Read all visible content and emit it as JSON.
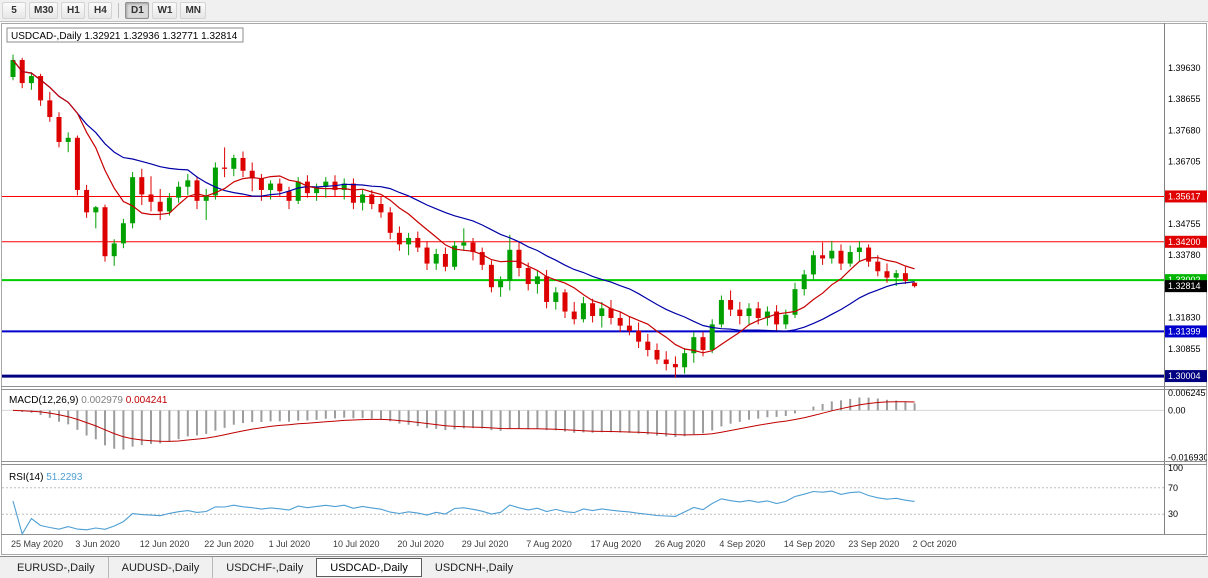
{
  "toolbar": {
    "buttons": [
      "5",
      "M30",
      "H1",
      "H4",
      "|",
      "D1",
      "W1",
      "MN"
    ],
    "active": "D1"
  },
  "chart": {
    "symbol_period": "USDCAD-,Daily",
    "open": "1.32921",
    "high": "1.32936",
    "low": "1.32771",
    "close": "1.32814"
  },
  "price_axis": {
    "grid_labels": [
      {
        "text": "1.39630",
        "value": 1.3963
      },
      {
        "text": "1.38655",
        "value": 1.38655
      },
      {
        "text": "1.37680",
        "value": 1.3768
      },
      {
        "text": "1.36705",
        "value": 1.36705
      },
      {
        "text": "1.35730",
        "value": 1.3573
      },
      {
        "text": "1.34755",
        "value": 1.34755
      },
      {
        "text": "1.33780",
        "value": 1.3378
      },
      {
        "text": "1.32805",
        "value": 1.32805
      },
      {
        "text": "1.31830",
        "value": 1.3183
      },
      {
        "text": "1.30855",
        "value": 1.30855
      },
      {
        "text": "1.29880",
        "value": 1.2988
      }
    ],
    "badges": [
      {
        "text": "1.35617",
        "value": 1.35617,
        "color": "#E00000"
      },
      {
        "text": "1.34200",
        "value": 1.342,
        "color": "#E00000"
      },
      {
        "text": "1.33002",
        "value": 1.33002,
        "color": "#00B400"
      },
      {
        "text": "1.31399",
        "value": 1.31399,
        "color": "#0000CC"
      },
      {
        "text": "1.30004",
        "value": 1.30004,
        "color": "#000080"
      },
      {
        "text": "1.32814",
        "value": 1.32814,
        "color": "#000000"
      }
    ]
  },
  "hlines": [
    {
      "value": 1.35617,
      "color": "#FF0000",
      "width": 1
    },
    {
      "value": 1.342,
      "color": "#FF0000",
      "width": 1
    },
    {
      "value": 1.33002,
      "color": "#00CC00",
      "width": 2
    },
    {
      "value": 1.31399,
      "color": "#0000CC",
      "width": 2
    },
    {
      "value": 1.30004,
      "color": "#000080",
      "width": 3
    }
  ],
  "macd": {
    "label": "MACD(12,26,9)",
    "value_main": "0.002979",
    "value_signal": "0.004241",
    "range": [
      -0.0175,
      0.007
    ],
    "axis": [
      {
        "text": "0.006245",
        "value": 0.006245
      },
      {
        "text": "0.00",
        "value": 0
      },
      {
        "text": "-0.016930",
        "value": -0.01693
      }
    ]
  },
  "rsi": {
    "label": "RSI(14)",
    "value": "51.2293",
    "period": 14,
    "levels": [
      70,
      30
    ],
    "axis": [
      {
        "text": "100",
        "value": 100
      },
      {
        "text": "70",
        "value": 70
      },
      {
        "text": "30",
        "value": 30
      }
    ]
  },
  "date_axis": {
    "step": 7,
    "labels": [
      "25 May 2020",
      "3 Jun 2020",
      "12 Jun 2020",
      "22 Jun 2020",
      "1 Jul 2020",
      "10 Jul 2020",
      "20 Jul 2020",
      "29 Jul 2020",
      "7 Aug 2020",
      "17 Aug 2020",
      "26 Aug 2020",
      "4 Sep 2020",
      "14 Sep 2020",
      "23 Sep 2020",
      "2 Oct 2020"
    ]
  },
  "tabs": [
    {
      "label": "EURUSD-,Daily",
      "active": false
    },
    {
      "label": "AUDUSD-,Daily",
      "active": false
    },
    {
      "label": "USDCHF-,Daily",
      "active": false
    },
    {
      "label": "USDCAD-,Daily",
      "active": true
    },
    {
      "label": "USDCNH-,Daily",
      "active": false
    }
  ],
  "chart_data": {
    "type": "candlestick",
    "symbol": "USDCAD",
    "timeframe": "Daily",
    "price_range": [
      1.2985,
      1.4085
    ],
    "colors": {
      "up": "#00A000",
      "down": "#DD0000",
      "ma_fast": "#C80000",
      "ma_slow": "#0000A8",
      "macd_hist": "#9C9C9C",
      "macd_signal": "#C00000",
      "rsi": "#4E9FD4"
    },
    "ma_fast": {
      "period": 8
    },
    "ma_slow": {
      "period": 20
    },
    "macd_params": {
      "fast": 12,
      "slow": 26,
      "signal": 9
    },
    "candles": [
      [
        1.3935,
        1.4005,
        1.3925,
        1.3988
      ],
      [
        1.3988,
        1.3995,
        1.39,
        1.3916
      ],
      [
        1.3916,
        1.395,
        1.3895,
        1.3938
      ],
      [
        1.3938,
        1.3945,
        1.3845,
        1.3862
      ],
      [
        1.3862,
        1.3888,
        1.3795,
        1.381
      ],
      [
        1.381,
        1.3825,
        1.3715,
        1.3732
      ],
      [
        1.3732,
        1.3762,
        1.37,
        1.3745
      ],
      [
        1.3745,
        1.3752,
        1.3565,
        1.3582
      ],
      [
        1.3582,
        1.3598,
        1.3495,
        1.3512
      ],
      [
        1.3512,
        1.3532,
        1.3462,
        1.3528
      ],
      [
        1.3528,
        1.3536,
        1.3358,
        1.3375
      ],
      [
        1.3375,
        1.3428,
        1.3345,
        1.3415
      ],
      [
        1.3415,
        1.3492,
        1.34,
        1.3478
      ],
      [
        1.3478,
        1.3638,
        1.3462,
        1.3622
      ],
      [
        1.3622,
        1.3648,
        1.3535,
        1.3568
      ],
      [
        1.3568,
        1.3625,
        1.3515,
        1.3545
      ],
      [
        1.3545,
        1.3585,
        1.3488,
        1.3515
      ],
      [
        1.3515,
        1.3572,
        1.3502,
        1.3558
      ],
      [
        1.3558,
        1.3608,
        1.3542,
        1.3592
      ],
      [
        1.3592,
        1.3632,
        1.3565,
        1.3612
      ],
      [
        1.3612,
        1.3625,
        1.3522,
        1.3548
      ],
      [
        1.3548,
        1.3585,
        1.3488,
        1.3565
      ],
      [
        1.3565,
        1.3668,
        1.3552,
        1.3652
      ],
      [
        1.3652,
        1.3715,
        1.3622,
        1.3648
      ],
      [
        1.3648,
        1.3692,
        1.3625,
        1.3682
      ],
      [
        1.3682,
        1.3702,
        1.3622,
        1.3642
      ],
      [
        1.3642,
        1.3668,
        1.3578,
        1.3618
      ],
      [
        1.3618,
        1.3632,
        1.3548,
        1.3582
      ],
      [
        1.3582,
        1.3612,
        1.3552,
        1.3602
      ],
      [
        1.3602,
        1.3618,
        1.3562,
        1.3578
      ],
      [
        1.3578,
        1.3592,
        1.3522,
        1.3548
      ],
      [
        1.3548,
        1.3622,
        1.3538,
        1.3608
      ],
      [
        1.3608,
        1.3628,
        1.3558,
        1.3572
      ],
      [
        1.3572,
        1.3602,
        1.3548,
        1.3592
      ],
      [
        1.3592,
        1.3622,
        1.3558,
        1.3608
      ],
      [
        1.3608,
        1.3628,
        1.3562,
        1.3582
      ],
      [
        1.3582,
        1.3618,
        1.3552,
        1.3602
      ],
      [
        1.3602,
        1.3618,
        1.3522,
        1.3542
      ],
      [
        1.3542,
        1.3582,
        1.3518,
        1.3568
      ],
      [
        1.3568,
        1.3582,
        1.3522,
        1.3538
      ],
      [
        1.3538,
        1.3562,
        1.3495,
        1.3512
      ],
      [
        1.3512,
        1.3528,
        1.3428,
        1.3448
      ],
      [
        1.3448,
        1.3468,
        1.3392,
        1.3412
      ],
      [
        1.3412,
        1.3448,
        1.3378,
        1.3432
      ],
      [
        1.3432,
        1.3452,
        1.3388,
        1.3402
      ],
      [
        1.3402,
        1.3422,
        1.3332,
        1.3352
      ],
      [
        1.3352,
        1.3398,
        1.3332,
        1.3382
      ],
      [
        1.3382,
        1.3402,
        1.3328,
        1.3342
      ],
      [
        1.3342,
        1.3422,
        1.3332,
        1.3408
      ],
      [
        1.3408,
        1.3462,
        1.3392,
        1.3418
      ],
      [
        1.3418,
        1.3432,
        1.3362,
        1.3388
      ],
      [
        1.3388,
        1.3402,
        1.3332,
        1.3348
      ],
      [
        1.3348,
        1.3362,
        1.3262,
        1.3278
      ],
      [
        1.3278,
        1.3312,
        1.3248,
        1.3298
      ],
      [
        1.3298,
        1.3442,
        1.3268,
        1.3395
      ],
      [
        1.3395,
        1.3418,
        1.3312,
        1.3338
      ],
      [
        1.3338,
        1.3355,
        1.3268,
        1.3288
      ],
      [
        1.3288,
        1.3332,
        1.3258,
        1.3312
      ],
      [
        1.3312,
        1.3332,
        1.3212,
        1.3232
      ],
      [
        1.3232,
        1.3278,
        1.3208,
        1.3262
      ],
      [
        1.3262,
        1.3272,
        1.3182,
        1.3202
      ],
      [
        1.3202,
        1.3232,
        1.3162,
        1.3178
      ],
      [
        1.3178,
        1.3248,
        1.3168,
        1.3228
      ],
      [
        1.3228,
        1.3242,
        1.3168,
        1.3188
      ],
      [
        1.3188,
        1.3232,
        1.3152,
        1.3212
      ],
      [
        1.3212,
        1.3238,
        1.3162,
        1.3182
      ],
      [
        1.3182,
        1.3202,
        1.3138,
        1.3158
      ],
      [
        1.3158,
        1.3188,
        1.3128,
        1.3142
      ],
      [
        1.3142,
        1.3168,
        1.3088,
        1.3108
      ],
      [
        1.3108,
        1.3132,
        1.3062,
        1.3082
      ],
      [
        1.3082,
        1.3102,
        1.3038,
        1.3052
      ],
      [
        1.3052,
        1.3078,
        1.3018,
        1.3038
      ],
      [
        1.3038,
        1.3062,
        1.2995,
        1.3028
      ],
      [
        1.3028,
        1.3088,
        1.3008,
        1.3072
      ],
      [
        1.3072,
        1.3138,
        1.3042,
        1.3122
      ],
      [
        1.3122,
        1.3138,
        1.3062,
        1.3082
      ],
      [
        1.3082,
        1.3178,
        1.3072,
        1.3162
      ],
      [
        1.3162,
        1.3252,
        1.3152,
        1.3238
      ],
      [
        1.3238,
        1.3268,
        1.3188,
        1.3208
      ],
      [
        1.3208,
        1.3232,
        1.3162,
        1.3188
      ],
      [
        1.3188,
        1.3228,
        1.3158,
        1.3212
      ],
      [
        1.3212,
        1.3232,
        1.3162,
        1.3182
      ],
      [
        1.3182,
        1.3218,
        1.3158,
        1.3202
      ],
      [
        1.3202,
        1.3222,
        1.3142,
        1.3162
      ],
      [
        1.3162,
        1.3208,
        1.3148,
        1.3192
      ],
      [
        1.3192,
        1.3292,
        1.3182,
        1.3272
      ],
      [
        1.3272,
        1.3332,
        1.3252,
        1.3318
      ],
      [
        1.3318,
        1.3392,
        1.3302,
        1.3378
      ],
      [
        1.3378,
        1.3418,
        1.3348,
        1.3368
      ],
      [
        1.3368,
        1.3422,
        1.3352,
        1.3392
      ],
      [
        1.3392,
        1.3412,
        1.3332,
        1.3352
      ],
      [
        1.3352,
        1.3408,
        1.3342,
        1.3388
      ],
      [
        1.3388,
        1.3422,
        1.3358,
        1.3402
      ],
      [
        1.3402,
        1.3412,
        1.3342,
        1.3358
      ],
      [
        1.3358,
        1.3378,
        1.3312,
        1.3328
      ],
      [
        1.3328,
        1.3352,
        1.3292,
        1.3308
      ],
      [
        1.3308,
        1.3332,
        1.3282,
        1.3322
      ],
      [
        1.3322,
        1.3342,
        1.3288,
        1.3298
      ],
      [
        1.32921,
        1.32936,
        1.32771,
        1.32814
      ]
    ]
  }
}
